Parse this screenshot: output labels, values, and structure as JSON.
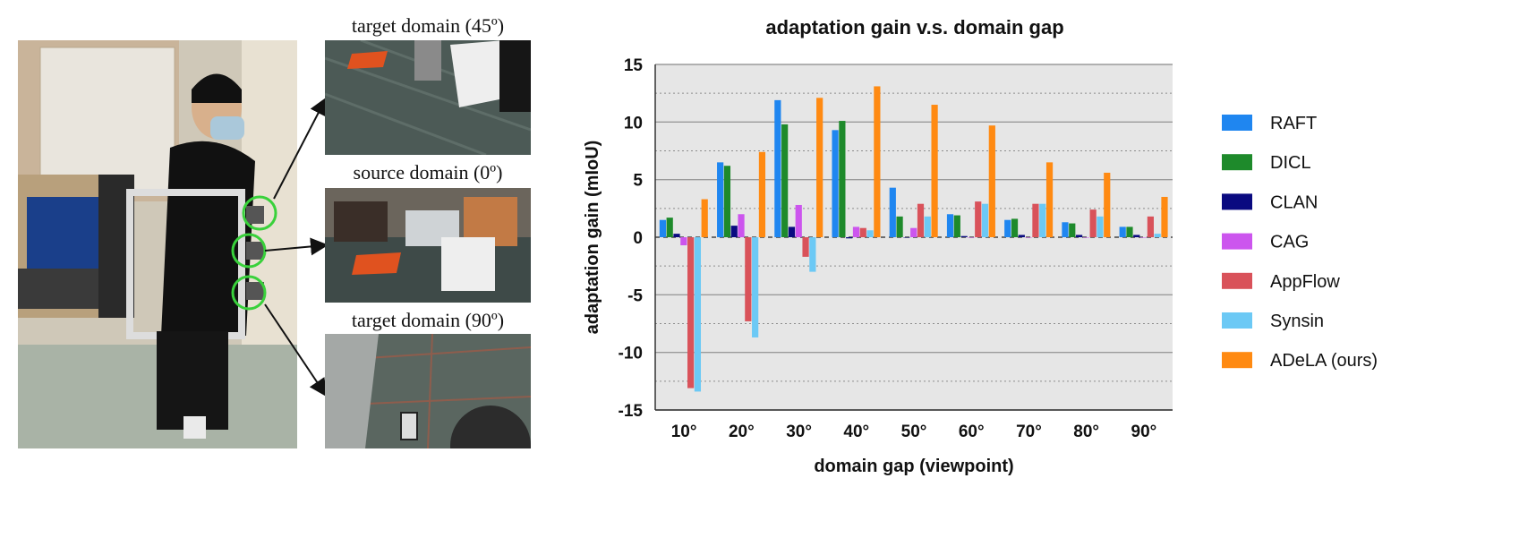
{
  "figure": {
    "captions": {
      "top": "target domain (45º)",
      "middle": "source domain (0º)",
      "bottom": "target domain (90º)"
    },
    "colors": {
      "carpet": "#4a5a55",
      "orange_mat": "#e0521f",
      "marker_ring": "#39d13b"
    }
  },
  "chart_data": {
    "type": "bar",
    "title": "adaptation gain v.s. domain gap",
    "xlabel": "domain gap (viewpoint)",
    "ylabel": "adaptation gain (mIoU)",
    "ylim": [
      -15,
      15
    ],
    "yticks": [
      15,
      10,
      5,
      0,
      -5,
      -10,
      -15
    ],
    "grid": true,
    "legend_position": "right",
    "categories": [
      "10°",
      "20°",
      "30°",
      "40°",
      "50°",
      "60°",
      "70°",
      "80°",
      "90°"
    ],
    "series": [
      {
        "name": "RAFT",
        "color": "#1f86f0",
        "values": [
          1.5,
          6.5,
          11.9,
          9.3,
          4.3,
          2.0,
          1.5,
          1.3,
          0.9
        ]
      },
      {
        "name": "DICL",
        "color": "#1e8a2b",
        "values": [
          1.7,
          6.2,
          9.8,
          10.1,
          1.8,
          1.9,
          1.6,
          1.2,
          0.9
        ]
      },
      {
        "name": "CLAN",
        "color": "#0a0a80",
        "values": [
          0.3,
          1.0,
          0.9,
          -0.1,
          0.0,
          0.1,
          0.2,
          0.2,
          0.2
        ]
      },
      {
        "name": "CAG",
        "color": "#cc55ee",
        "values": [
          -0.7,
          2.0,
          2.8,
          0.9,
          0.8,
          0.0,
          0.0,
          0.0,
          0.0
        ]
      },
      {
        "name": "AppFlow",
        "color": "#d9525a",
        "values": [
          -13.1,
          -7.3,
          -1.7,
          0.8,
          2.9,
          3.1,
          2.9,
          2.4,
          1.8
        ]
      },
      {
        "name": "Synsin",
        "color": "#6cc9f5",
        "values": [
          -13.4,
          -8.7,
          -3.0,
          0.6,
          1.8,
          2.9,
          2.9,
          1.8,
          0.3
        ]
      },
      {
        "name": "ADeLA (ours)",
        "color": "#ff8a12",
        "values": [
          3.3,
          7.4,
          12.1,
          13.1,
          11.5,
          9.7,
          6.5,
          5.6,
          3.5
        ]
      }
    ]
  }
}
